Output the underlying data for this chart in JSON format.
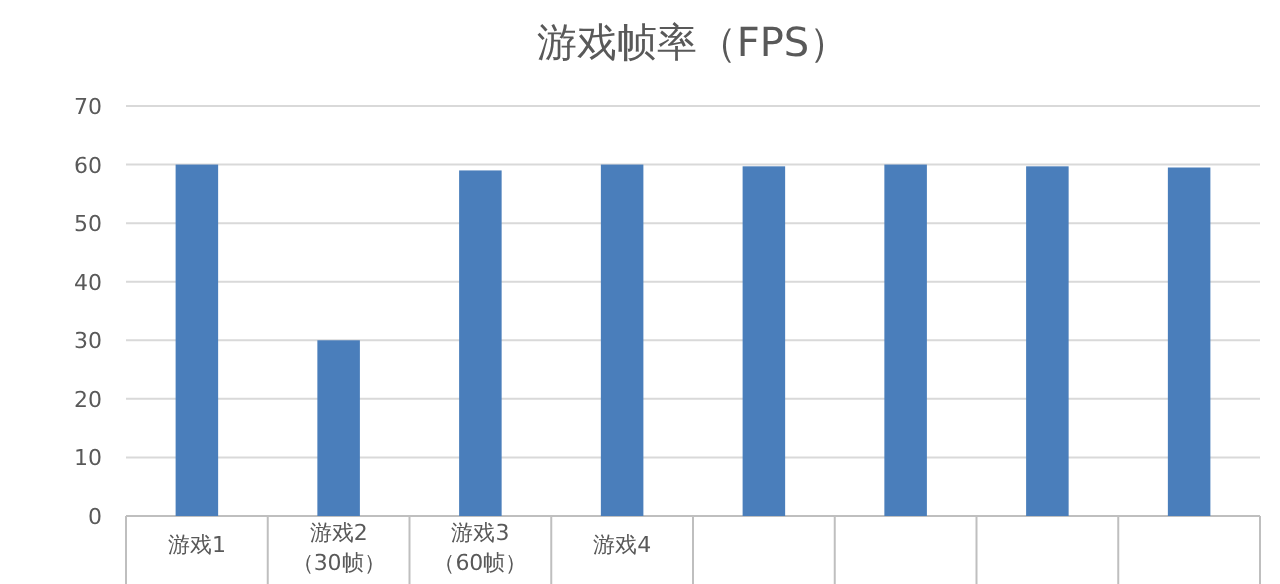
{
  "chart_data": {
    "type": "bar",
    "title": "游戏帧率（FPS）",
    "categories": [
      "游戏1",
      "游戏2\n（30帧）",
      "游戏3\n（60帧）",
      "游戏4",
      null,
      null,
      null,
      null
    ],
    "values": [
      60,
      30,
      59,
      60,
      59.7,
      60,
      59.7,
      59.5
    ],
    "color": "#4a7ebb",
    "ylim": [
      0,
      70
    ],
    "yticks": [
      0,
      10,
      20,
      30,
      40,
      50,
      60,
      70
    ],
    "grid": "y"
  }
}
